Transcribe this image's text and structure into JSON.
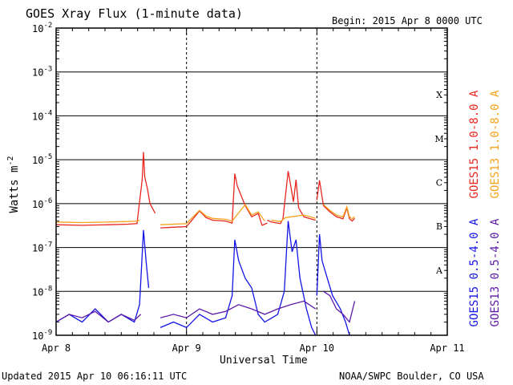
{
  "header": {
    "title": "GOES Xray Flux (1-minute data)",
    "begin": "Begin:  2015 Apr 8 0000 UTC"
  },
  "footer": {
    "updated": "Updated 2015 Apr 10 06:16:11 UTC",
    "credit": "NOAA/SWPC Boulder, CO USA"
  },
  "chart_data": {
    "type": "line",
    "title": "GOES Xray Flux (1-minute data)",
    "xlabel": "Universal Time",
    "ylabel": "Watts m",
    "ylabel_sup": "-2",
    "x_ticks": [
      "Apr 8",
      "Apr 9",
      "Apr 10",
      "Apr 11"
    ],
    "x_unit": "days since 2015 Apr 8 0000 UTC",
    "xlim": [
      0,
      3
    ],
    "ylim_exponent": [
      -9,
      -2
    ],
    "y_ticks": [
      {
        "base": "10",
        "exp": "-9"
      },
      {
        "base": "10",
        "exp": "-8"
      },
      {
        "base": "10",
        "exp": "-7"
      },
      {
        "base": "10",
        "exp": "-6"
      },
      {
        "base": "10",
        "exp": "-5"
      },
      {
        "base": "10",
        "exp": "-4"
      },
      {
        "base": "10",
        "exp": "-3"
      },
      {
        "base": "10",
        "exp": "-2"
      }
    ],
    "flare_classes": [
      {
        "label": "A",
        "exp": -7.5
      },
      {
        "label": "B",
        "exp": -6.5
      },
      {
        "label": "C",
        "exp": -5.5
      },
      {
        "label": "M",
        "exp": -4.5
      },
      {
        "label": "X",
        "exp": -3.5
      }
    ],
    "grid": true,
    "y_scale": "log",
    "series": [
      {
        "name": "GOES15 1.0-8.0 A",
        "color": "#e8261e",
        "segments": [
          [
            [
              0.0,
              3.3e-07
            ],
            [
              0.2,
              3.2e-07
            ],
            [
              0.4,
              3.3e-07
            ],
            [
              0.55,
              3.4e-07
            ],
            [
              0.62,
              3.5e-07
            ],
            [
              0.66,
              3.5e-06
            ],
            [
              0.67,
              1.5e-05
            ],
            [
              0.68,
              4e-06
            ],
            [
              0.7,
              2.2e-06
            ],
            [
              0.72,
              1e-06
            ],
            [
              0.76,
              6e-07
            ]
          ],
          [
            [
              0.8,
              2.8e-07
            ],
            [
              0.9,
              2.9e-07
            ],
            [
              1.0,
              3e-07
            ],
            [
              1.05,
              4.5e-07
            ],
            [
              1.1,
              6.8e-07
            ],
            [
              1.15,
              4.8e-07
            ],
            [
              1.2,
              4.2e-07
            ],
            [
              1.3,
              4e-07
            ],
            [
              1.35,
              3.6e-07
            ],
            [
              1.37,
              4.8e-06
            ],
            [
              1.39,
              2.5e-06
            ],
            [
              1.45,
              9e-07
            ],
            [
              1.5,
              5e-07
            ],
            [
              1.55,
              6e-07
            ],
            [
              1.58,
              3.2e-07
            ],
            [
              1.62,
              3.6e-07
            ]
          ],
          [
            [
              1.62,
              4.2e-07
            ],
            [
              1.65,
              3.8e-07
            ],
            [
              1.72,
              3.5e-07
            ],
            [
              1.74,
              4.5e-07
            ],
            [
              1.78,
              5.5e-06
            ],
            [
              1.8,
              2.5e-06
            ],
            [
              1.82,
              1.1e-06
            ],
            [
              1.84,
              3.5e-06
            ],
            [
              1.86,
              8e-07
            ],
            [
              1.9,
              5e-07
            ],
            [
              1.95,
              4.5e-07
            ],
            [
              1.99,
              4.2e-07
            ]
          ],
          [
            [
              2.0,
              1.2e-06
            ],
            [
              2.02,
              3.4e-06
            ],
            [
              2.05,
              9e-07
            ],
            [
              2.1,
              6.5e-07
            ],
            [
              2.15,
              5e-07
            ],
            [
              2.2,
              4.5e-07
            ],
            [
              2.23,
              8e-07
            ],
            [
              2.25,
              4.5e-07
            ],
            [
              2.27,
              4e-07
            ],
            [
              2.29,
              4.6e-07
            ]
          ]
        ]
      },
      {
        "name": "GOES13 1.0-8.0 A",
        "color": "#f7a21b",
        "segments": [
          [
            [
              0.0,
              3.8e-07
            ],
            [
              0.2,
              3.7e-07
            ],
            [
              0.4,
              3.8e-07
            ],
            [
              0.55,
              3.9e-07
            ],
            [
              0.62,
              4e-07
            ],
            [
              0.64,
              4.2e-07
            ]
          ],
          [
            [
              0.8,
              3.3e-07
            ],
            [
              0.9,
              3.4e-07
            ],
            [
              1.0,
              3.5e-07
            ],
            [
              1.05,
              5e-07
            ],
            [
              1.1,
              7e-07
            ],
            [
              1.15,
              5.2e-07
            ],
            [
              1.2,
              4.6e-07
            ],
            [
              1.3,
              4.4e-07
            ],
            [
              1.35,
              4e-07
            ],
            [
              1.45,
              9.5e-07
            ],
            [
              1.5,
              5.5e-07
            ],
            [
              1.55,
              6.5e-07
            ],
            [
              1.6,
              4e-07
            ]
          ],
          [
            [
              1.65,
              4.2e-07
            ],
            [
              1.72,
              3.9e-07
            ],
            [
              1.76,
              4.8e-07
            ],
            [
              1.9,
              5.5e-07
            ],
            [
              1.95,
              5e-07
            ],
            [
              1.99,
              4.6e-07
            ]
          ],
          [
            [
              2.05,
              9.5e-07
            ],
            [
              2.1,
              7e-07
            ],
            [
              2.15,
              5.5e-07
            ],
            [
              2.2,
              5e-07
            ],
            [
              2.23,
              8.5e-07
            ],
            [
              2.25,
              5e-07
            ],
            [
              2.27,
              4.5e-07
            ],
            [
              2.29,
              5e-07
            ]
          ]
        ]
      },
      {
        "name": "GOES15 0.5-4.0 A",
        "color": "#1414e6",
        "segments": [
          [
            [
              0.0,
              2e-09
            ],
            [
              0.1,
              3e-09
            ],
            [
              0.2,
              2e-09
            ],
            [
              0.3,
              4e-09
            ],
            [
              0.4,
              2e-09
            ],
            [
              0.5,
              3e-09
            ],
            [
              0.6,
              2e-09
            ],
            [
              0.64,
              5e-09
            ],
            [
              0.67,
              2.5e-07
            ],
            [
              0.69,
              5e-08
            ],
            [
              0.71,
              1.2e-08
            ]
          ],
          [
            [
              0.8,
              1.5e-09
            ],
            [
              0.9,
              2e-09
            ],
            [
              1.0,
              1.5e-09
            ],
            [
              1.1,
              3e-09
            ],
            [
              1.2,
              2e-09
            ],
            [
              1.3,
              2.5e-09
            ],
            [
              1.35,
              8e-09
            ],
            [
              1.37,
              1.5e-07
            ],
            [
              1.4,
              5e-08
            ],
            [
              1.45,
              2e-08
            ],
            [
              1.5,
              1.2e-08
            ],
            [
              1.55,
              3e-09
            ],
            [
              1.6,
              2e-09
            ],
            [
              1.7,
              3e-09
            ],
            [
              1.75,
              1e-08
            ],
            [
              1.78,
              4e-07
            ],
            [
              1.81,
              8e-08
            ],
            [
              1.84,
              1.5e-07
            ],
            [
              1.87,
              2e-08
            ],
            [
              1.92,
              4e-09
            ],
            [
              1.96,
              1.5e-09
            ],
            [
              1.99,
              1e-09
            ]
          ],
          [
            [
              2.0,
              8e-09
            ],
            [
              2.02,
              2e-07
            ],
            [
              2.04,
              5e-08
            ],
            [
              2.08,
              2e-08
            ],
            [
              2.12,
              8e-09
            ],
            [
              2.18,
              4e-09
            ],
            [
              2.22,
              2e-09
            ],
            [
              2.25,
              1e-09
            ]
          ]
        ]
      },
      {
        "name": "GOES13 0.5-4.0 A",
        "color": "#5c1aa8",
        "segments": [
          [
            [
              0.0,
              2e-09
            ],
            [
              0.1,
              3e-09
            ],
            [
              0.2,
              2.5e-09
            ],
            [
              0.3,
              3.5e-09
            ],
            [
              0.4,
              2e-09
            ],
            [
              0.5,
              3e-09
            ],
            [
              0.6,
              2.2e-09
            ],
            [
              0.65,
              3e-09
            ]
          ],
          [
            [
              0.8,
              2.5e-09
            ],
            [
              0.9,
              3e-09
            ],
            [
              1.0,
              2.5e-09
            ],
            [
              1.1,
              4e-09
            ],
            [
              1.2,
              3e-09
            ],
            [
              1.3,
              3.5e-09
            ],
            [
              1.4,
              5e-09
            ],
            [
              1.5,
              4e-09
            ],
            [
              1.6,
              3e-09
            ],
            [
              1.7,
              4e-09
            ],
            [
              1.8,
              5e-09
            ],
            [
              1.9,
              6e-09
            ],
            [
              1.99,
              4e-09
            ]
          ],
          [
            [
              2.05,
              1e-08
            ],
            [
              2.1,
              8e-09
            ],
            [
              2.15,
              4e-09
            ],
            [
              2.2,
              3e-09
            ],
            [
              2.25,
              2e-09
            ],
            [
              2.29,
              6e-09
            ]
          ]
        ]
      }
    ]
  }
}
